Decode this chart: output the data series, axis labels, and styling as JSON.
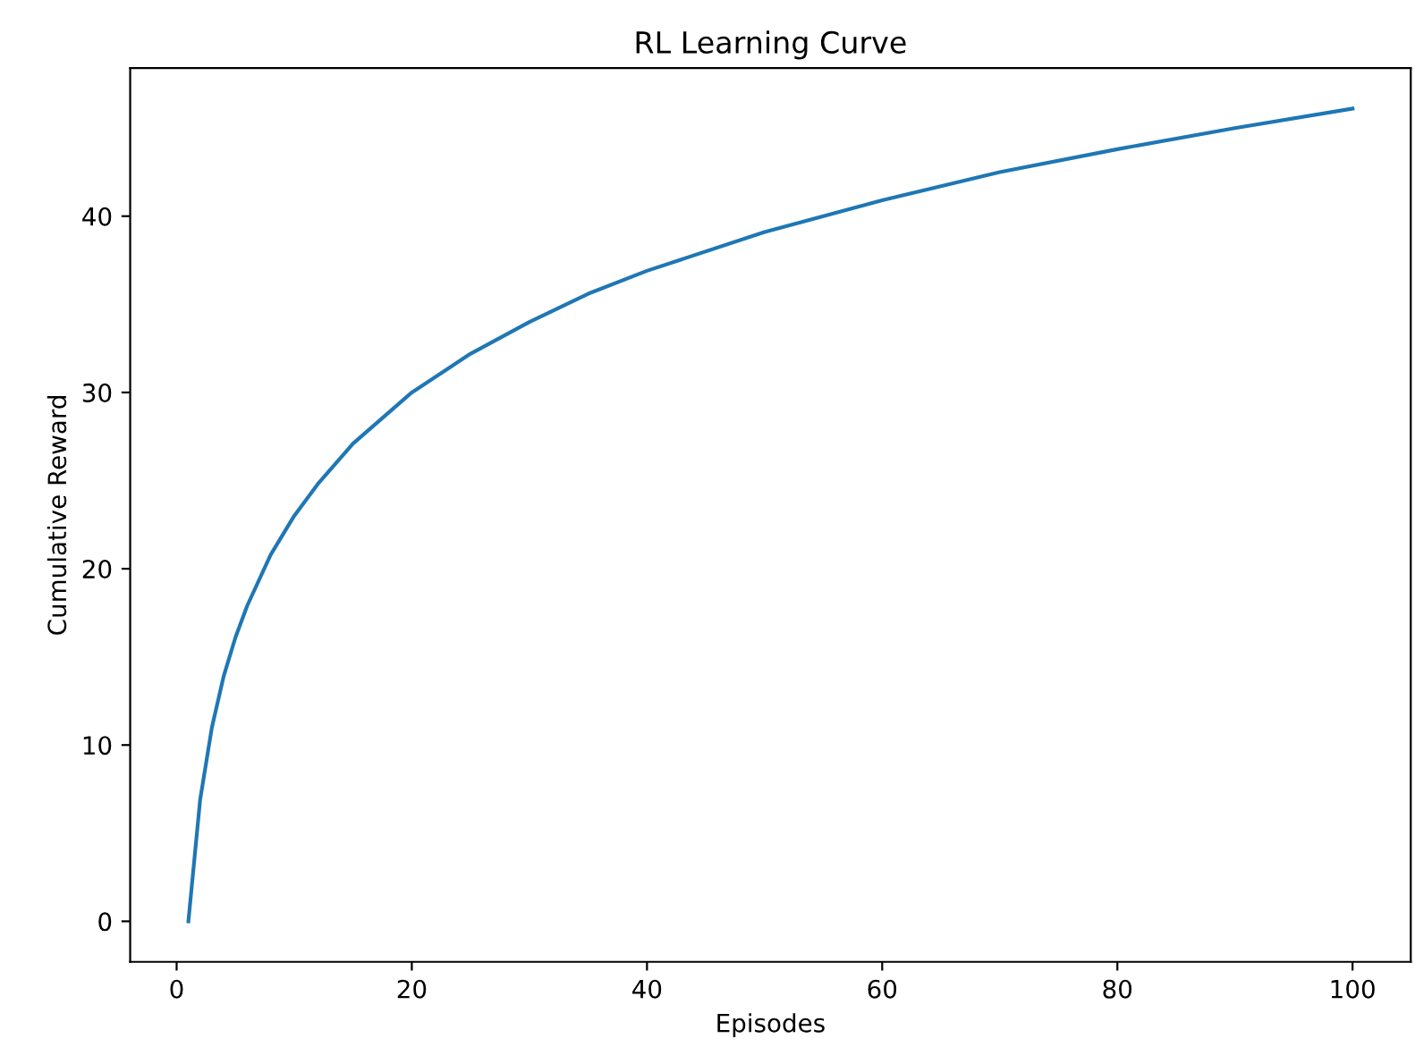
{
  "chart_data": {
    "type": "line",
    "title": "RL Learning Curve",
    "xlabel": "Episodes",
    "ylabel": "Cumulative Reward",
    "x": [
      1,
      2,
      3,
      4,
      5,
      6,
      8,
      10,
      12,
      15,
      20,
      25,
      30,
      35,
      40,
      50,
      60,
      70,
      80,
      90,
      100
    ],
    "series": [
      {
        "color": "#1f77b4",
        "values": [
          0,
          6.9,
          11.0,
          13.9,
          16.1,
          17.9,
          20.8,
          23.0,
          24.8,
          27.1,
          30.0,
          32.2,
          34.0,
          35.6,
          36.9,
          39.1,
          40.9,
          42.5,
          43.8,
          45.0,
          46.1
        ]
      }
    ],
    "xlim": [
      -3.95,
      104.95
    ],
    "ylim": [
      -2.3,
      48.4
    ],
    "xticks": [
      0,
      20,
      40,
      60,
      80,
      100
    ],
    "yticks": [
      0,
      10,
      20,
      30,
      40
    ],
    "grid": false,
    "legend": false,
    "marker": "none",
    "line_style": "solid"
  }
}
